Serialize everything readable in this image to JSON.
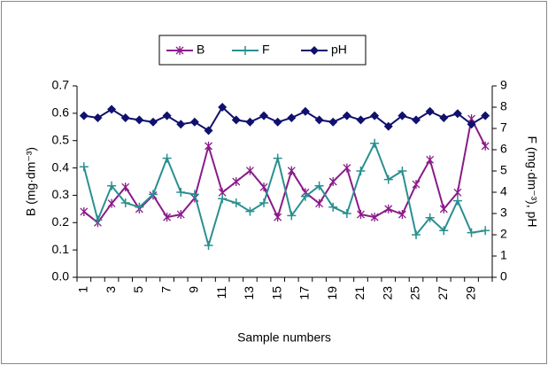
{
  "chart_data": {
    "type": "line",
    "categories": [
      1,
      null,
      3,
      null,
      5,
      null,
      7,
      null,
      9,
      null,
      11,
      null,
      13,
      null,
      15,
      null,
      17,
      null,
      19,
      null,
      21,
      null,
      23,
      null,
      25,
      null,
      27,
      null,
      29,
      null
    ],
    "series": [
      {
        "name": "B",
        "color": "#8b1a89",
        "marker": "asterisk",
        "axis": "y",
        "values": [
          0.24,
          0.2,
          0.27,
          0.33,
          0.25,
          0.3,
          0.22,
          0.23,
          0.29,
          0.48,
          0.31,
          0.35,
          0.39,
          0.33,
          0.22,
          0.39,
          0.31,
          0.27,
          0.35,
          0.4,
          0.23,
          0.22,
          0.25,
          0.23,
          0.34,
          0.43,
          0.25,
          0.31,
          0.58,
          0.48
        ]
      },
      {
        "name": "F",
        "color": "#2a8f8f",
        "marker": "plus",
        "axis": "y2",
        "values": [
          5.2,
          2.7,
          4.3,
          3.5,
          3.3,
          3.9,
          5.6,
          4.0,
          3.9,
          1.5,
          3.7,
          3.5,
          3.1,
          3.5,
          5.6,
          2.9,
          3.8,
          4.3,
          3.3,
          3.0,
          5.0,
          6.3,
          4.6,
          5.0,
          2.0,
          2.8,
          2.2,
          3.6,
          2.1,
          2.2
        ]
      },
      {
        "name": "pH",
        "color": "#10106e",
        "marker": "diamond",
        "axis": "y2",
        "values": [
          7.6,
          7.5,
          7.9,
          7.5,
          7.4,
          7.3,
          7.6,
          7.2,
          7.3,
          6.9,
          8.0,
          7.4,
          7.3,
          7.6,
          7.3,
          7.5,
          7.8,
          7.4,
          7.3,
          7.6,
          7.4,
          7.6,
          7.1,
          7.6,
          7.4,
          7.8,
          7.5,
          7.7,
          7.2,
          7.6
        ]
      }
    ],
    "ylabel": "B (mg·dm⁻³)",
    "y2label": "F (mg·dm⁻³), pH",
    "xlabel": "Sample numbers",
    "ylim": [
      0,
      0.7
    ],
    "yticks": [
      {
        "value": 0,
        "label": "0.0"
      },
      0.1,
      0.2,
      0.3,
      0.4,
      0.5,
      0.6,
      0.7
    ],
    "y2lim": [
      0,
      9
    ],
    "y2ticks": [
      0,
      1,
      2,
      3,
      4,
      5,
      6,
      7,
      8,
      9
    ],
    "legend": "top"
  }
}
